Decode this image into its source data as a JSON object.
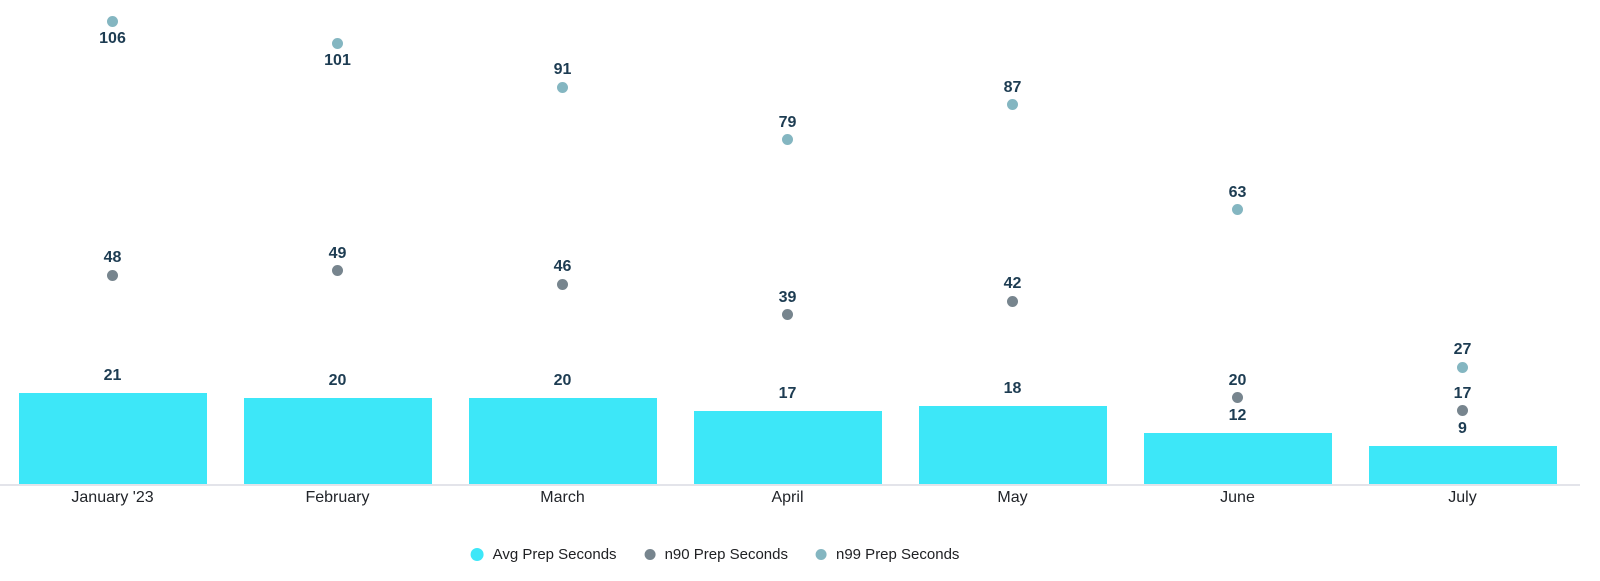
{
  "chart_data": {
    "type": "bar",
    "title": "",
    "xlabel": "",
    "ylabel": "",
    "categories": [
      "January '23",
      "February",
      "March",
      "April",
      "May",
      "June",
      "July"
    ],
    "series": [
      {
        "name": "Avg Prep Seconds",
        "mark": "bar",
        "color": "#3de7f8",
        "values": [
          21,
          20,
          20,
          17,
          18,
          12,
          9
        ]
      },
      {
        "name": "n90 Prep Seconds",
        "mark": "scatter",
        "color": "#77858e",
        "values": [
          48,
          49,
          46,
          39,
          42,
          20,
          17
        ]
      },
      {
        "name": "n99 Prep Seconds",
        "mark": "scatter",
        "color": "#84b6c1",
        "values": [
          106,
          101,
          91,
          79,
          87,
          63,
          27
        ]
      }
    ],
    "ylim": [
      0,
      111
    ],
    "grid": false,
    "y_axis_visible": false,
    "value_labels": true,
    "legend_position": "bottom-center",
    "colors": {
      "value_label": "#1d3c52",
      "axis_text": "#212429",
      "legend_text": "#202124",
      "axis_line": "#e3e4ea",
      "background": "#ffffff"
    }
  }
}
